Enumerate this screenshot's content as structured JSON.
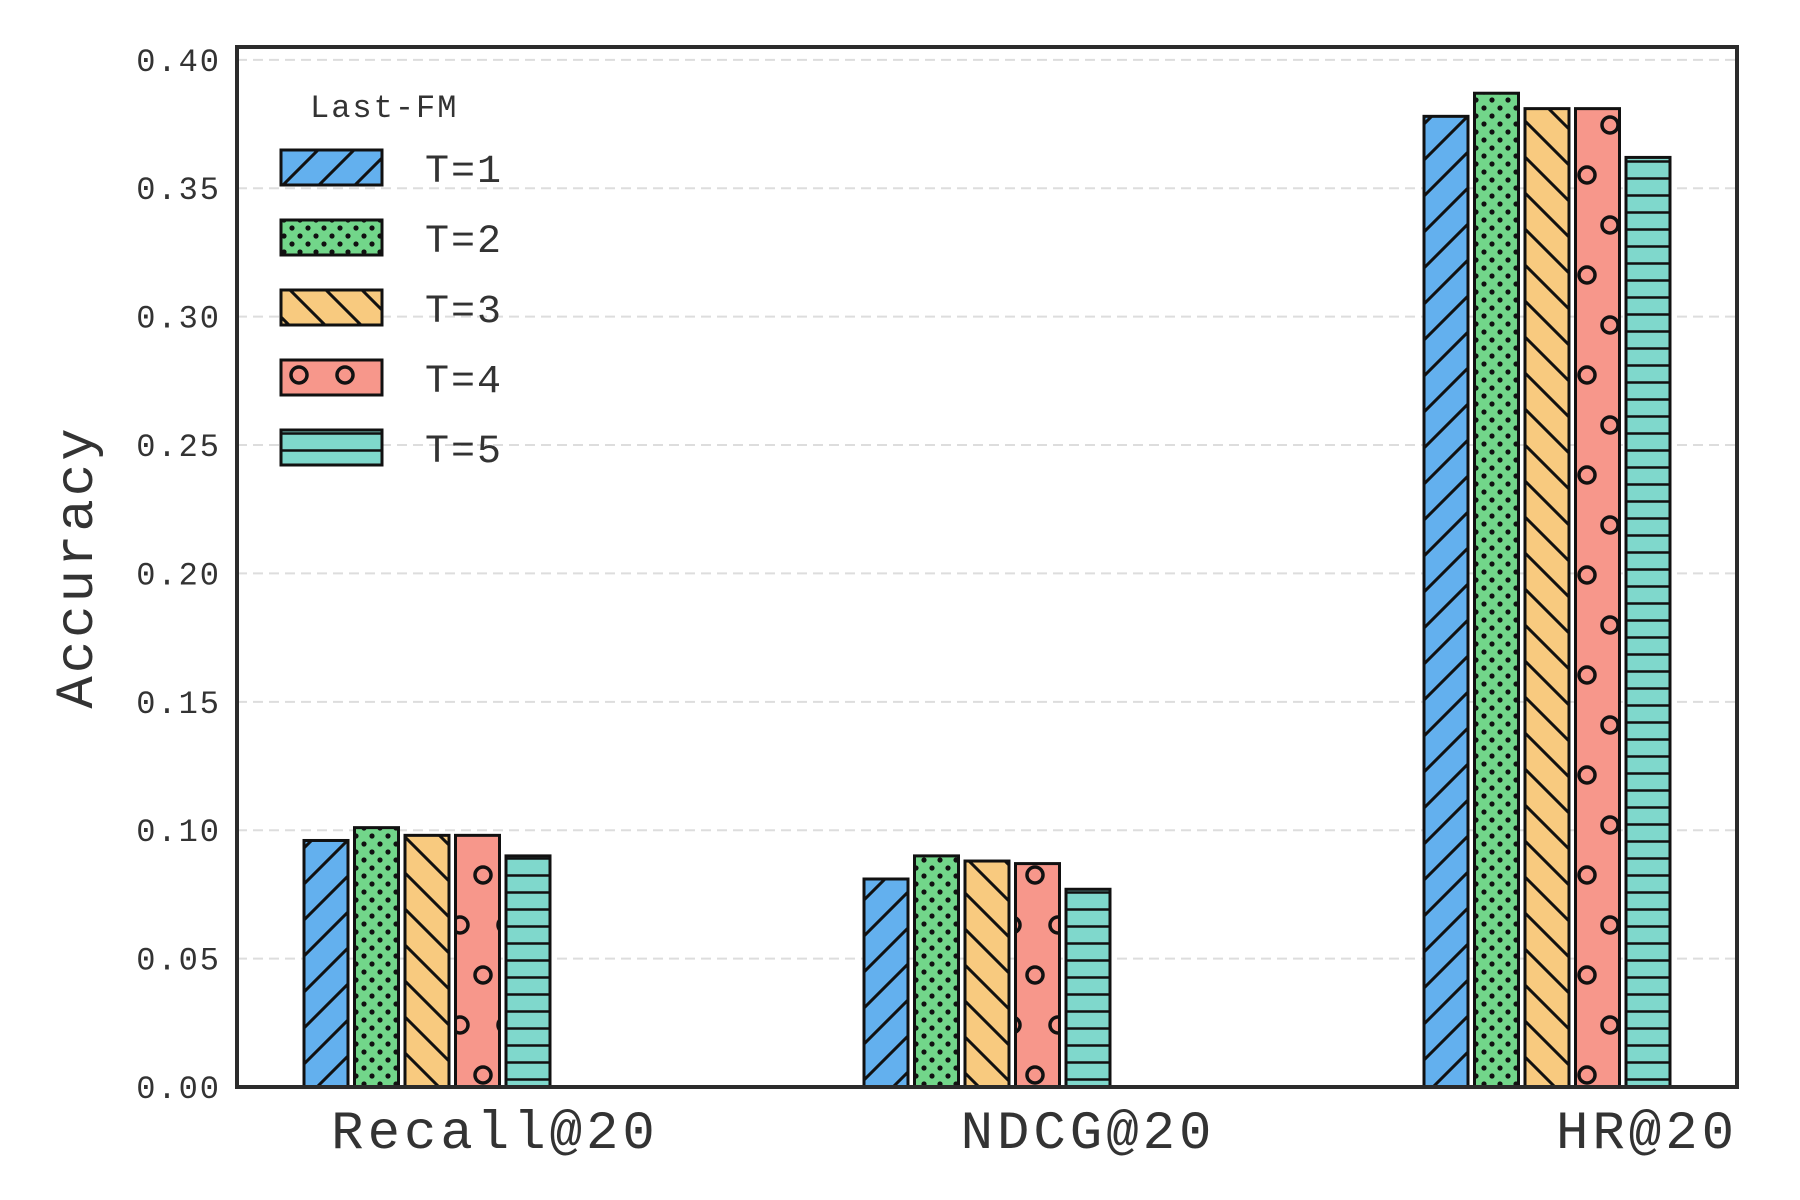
{
  "chart_data": {
    "type": "bar",
    "ylabel": "Accuracy",
    "xlabel": "",
    "categories": [
      "Recall@20",
      "NDCG@20",
      "HR@20"
    ],
    "ylim": [
      0,
      0.405
    ],
    "yticks": [
      0.0,
      0.05,
      0.1,
      0.15,
      0.2,
      0.25,
      0.3,
      0.35,
      0.4
    ],
    "ytick_labels": [
      "0.00",
      "0.05",
      "0.10",
      "0.15",
      "0.20",
      "0.25",
      "0.30",
      "0.35",
      "0.40"
    ],
    "grid": "horizontal dashed",
    "legend": {
      "title": "Last-FM",
      "placement": "top-left"
    },
    "series": [
      {
        "name": "T=1",
        "values": [
          0.096,
          0.081,
          0.378
        ],
        "color": "#63b0ee",
        "pattern": "diagonal-forward"
      },
      {
        "name": "T=2",
        "values": [
          0.101,
          0.09,
          0.387
        ],
        "color": "#72d68a",
        "pattern": "dots"
      },
      {
        "name": "T=3",
        "values": [
          0.098,
          0.088,
          0.381
        ],
        "color": "#f8ca7f",
        "pattern": "diagonal-back"
      },
      {
        "name": "T=4",
        "values": [
          0.098,
          0.087,
          0.381
        ],
        "color": "#f7978b",
        "pattern": "circles"
      },
      {
        "name": "T=5",
        "values": [
          0.09,
          0.077,
          0.362
        ],
        "color": "#7fd8cc",
        "pattern": "horizontal"
      }
    ]
  }
}
